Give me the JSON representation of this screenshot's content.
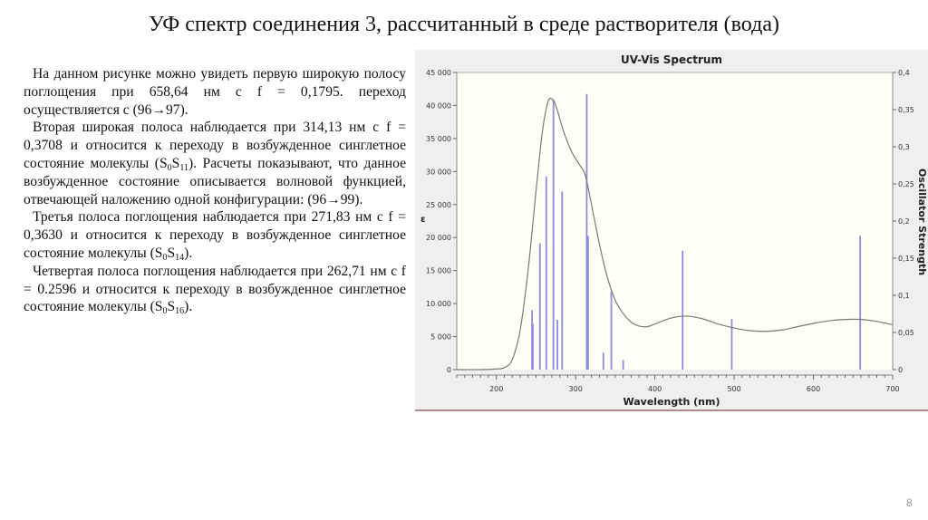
{
  "slide": {
    "title": "УФ спектр соединения 3, рассчитанный в среде растворителя (вода)",
    "page_number": "8",
    "paragraphs": [
      {
        "parts": [
          "На данном рисунке можно увидеть первую широкую полосу поглощения при 658,64 нм с f = 0,1795. переход осуществляется с (96→97)."
        ]
      },
      {
        "parts": [
          "Вторая широкая полоса наблюдается при 314,13 нм с f = 0,3708 и относится к переходу в возбужденное синглетное состояние молекулы (S",
          "0",
          "S",
          "11",
          "). Расчеты показывают, что данное возбужденное состояние описывается волновой функцией, отвечающей наложению одной конфигурации: (96→99)."
        ]
      },
      {
        "parts": [
          "Третья полоса поглощения наблюдается при 271,83 нм с f = 0,3630  и относится к переходу в возбужденное синглетное состояние молекулы (S",
          "0",
          "S",
          "14",
          ")."
        ]
      },
      {
        "parts": [
          "Четвертая полоса поглощения наблюдается при 262,71 нм с f = 0.2596 и относится к переходу в возбужденное синглетное состояние молекулы (S",
          "0",
          "S",
          "16",
          ")."
        ]
      }
    ]
  },
  "chart_data": {
    "type": "line",
    "title": "UV-Vis Spectrum",
    "xlabel": "Wavelength (nm)",
    "ylabel": "ε",
    "y2label": "Oscillator Strength",
    "xlim": [
      150,
      700
    ],
    "ylim": [
      0,
      45000
    ],
    "y2lim": [
      0,
      0.4
    ],
    "x_ticks": [
      "200",
      "300",
      "400",
      "500",
      "600",
      "700"
    ],
    "y_ticks": [
      "0",
      "5 000",
      "10 000",
      "15 000",
      "20 000",
      "25 000",
      "30 000",
      "35 000",
      "40 000",
      "45 000"
    ],
    "y2_ticks": [
      "0",
      "0,05",
      "0,1",
      "0,15",
      "0,2",
      "0,25",
      "0,3",
      "0,35",
      "0,4"
    ],
    "grid": false,
    "legend": null,
    "colors": {
      "curve": "#7a7a72",
      "sticks": "#8c8ce0",
      "plot_bg": "#fffff8",
      "frame_bg": "#efefef"
    },
    "series": [
      {
        "name": "ε (absorption curve)",
        "x": [
          150,
          180,
          200,
          210,
          220,
          230,
          240,
          250,
          258,
          265,
          270,
          275,
          285,
          295,
          305,
          312,
          320,
          330,
          340,
          350,
          360,
          370,
          380,
          390,
          400,
          420,
          440,
          460,
          480,
          500,
          520,
          540,
          560,
          580,
          600,
          620,
          640,
          660,
          680,
          700
        ],
        "y": [
          0,
          0,
          100,
          300,
          1500,
          6000,
          15000,
          27000,
          36000,
          40500,
          41000,
          40000,
          36000,
          33000,
          31000,
          29500,
          25000,
          19000,
          14000,
          10500,
          8500,
          7200,
          6600,
          6500,
          6900,
          7800,
          8100,
          7700,
          6900,
          6300,
          5900,
          5800,
          6000,
          6500,
          7000,
          7400,
          7600,
          7600,
          7300,
          6800
        ]
      },
      {
        "name": "Oscillator Strength (sticks)",
        "x": [
          245,
          246,
          255,
          263,
          272,
          277,
          283,
          314,
          315,
          335,
          345,
          360,
          435,
          497,
          659
        ],
        "y": [
          0.08,
          0.062,
          0.17,
          0.26,
          0.363,
          0.067,
          0.24,
          0.371,
          0.18,
          0.023,
          0.105,
          0.013,
          0.16,
          0.068,
          0.18
        ]
      }
    ]
  }
}
